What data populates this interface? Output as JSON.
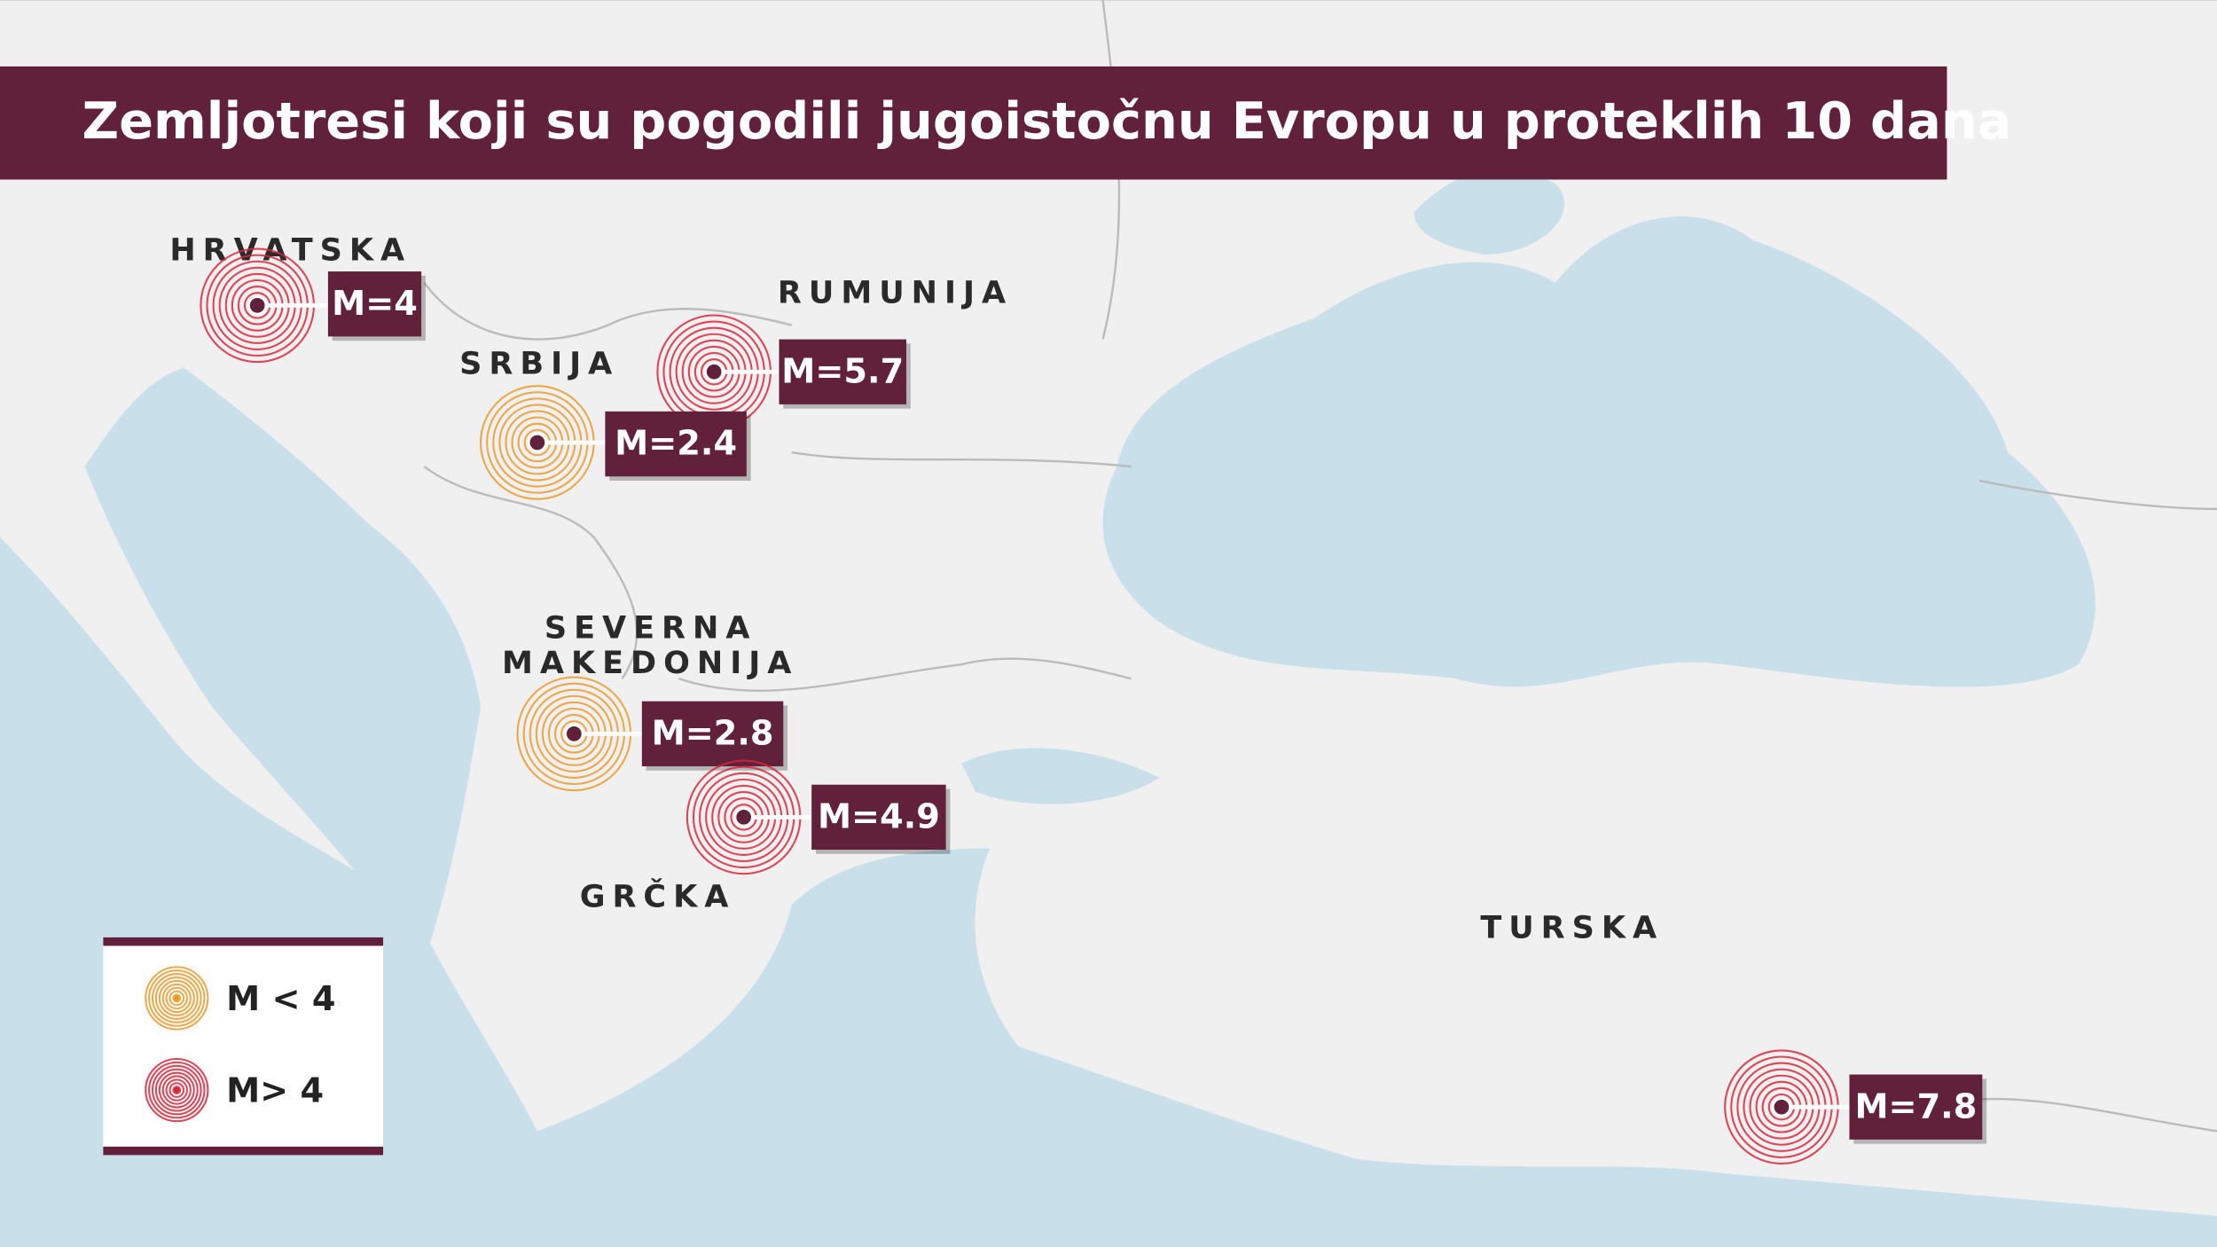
{
  "title": "Zemljotresi koji su pogodili jugoistočnu Evropu u proteklih 10 dana",
  "countries": [
    {
      "lines": [
        "HRVATSKA"
      ]
    },
    {
      "lines": [
        "RUMUNIJA"
      ]
    },
    {
      "lines": [
        "SRBIJA"
      ]
    },
    {
      "lines": [
        "SEVERNA",
        "MAKEDONIJA"
      ]
    },
    {
      "lines": [
        "GRČKA"
      ]
    },
    {
      "lines": [
        "TURSKA"
      ]
    }
  ],
  "earthquakes": [
    {
      "label": "M=4",
      "color": "#d9263a"
    },
    {
      "label": "M=5.7",
      "color": "#d9263a"
    },
    {
      "label": "M=2.4",
      "color": "#eb9a2a"
    },
    {
      "label": "M=2.8",
      "color": "#eb9a2a"
    },
    {
      "label": "M=4.9",
      "color": "#d9263a"
    },
    {
      "label": "M=7.8",
      "color": "#d9263a"
    }
  ],
  "legend": [
    {
      "label": "M < 4",
      "color": "#eb9a2a"
    },
    {
      "label": "M> 4",
      "color": "#d9263a"
    }
  ]
}
